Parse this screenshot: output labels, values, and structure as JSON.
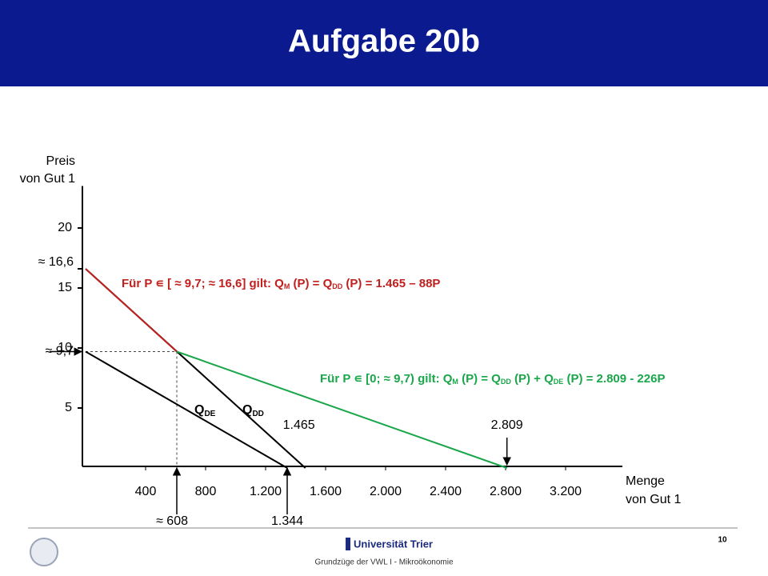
{
  "header": {
    "title": "Aufgabe 20b"
  },
  "chart_data": {
    "type": "line",
    "y_label": [
      "Preis",
      "von Gut 1"
    ],
    "x_label": [
      "Menge",
      "von Gut 1"
    ],
    "xlim": [
      0,
      3600
    ],
    "ylim": [
      0,
      23.5
    ],
    "xticks": [
      400,
      800,
      {
        "value": 1200,
        "label": "1.200"
      },
      {
        "value": 1600,
        "label": "1.600"
      },
      {
        "value": 2000,
        "label": "2.000"
      },
      {
        "value": 2400,
        "label": "2.400"
      },
      {
        "value": 2800,
        "label": "2.800"
      },
      {
        "value": 3200,
        "label": "3.200"
      }
    ],
    "yticks": [
      5,
      10,
      15,
      20
    ],
    "series": [
      {
        "label": [
          "Q",
          "DE"
        ],
        "color": "#000000",
        "x": [
          0,
          1344
        ],
        "values": [
          9.7,
          0
        ]
      },
      {
        "label": [
          "Q",
          "DD"
        ],
        "color": "#000000",
        "x": [
          0,
          1465
        ],
        "values": [
          16.6,
          0
        ]
      },
      {
        "color": "#c0201e",
        "x": [
          0,
          608
        ],
        "values": [
          16.6,
          9.7
        ]
      },
      {
        "color": "#1aa64a",
        "x": [
          608,
          2809
        ],
        "values": [
          9.7,
          0
        ]
      }
    ],
    "y_annotations": [
      {
        "text": "≈ 16,6",
        "value": 16.6,
        "kind": "tick"
      },
      {
        "text": "≈ 9,7",
        "value": 9.7,
        "kind": "arrow"
      }
    ],
    "x_annotations_below": [
      {
        "text": "≈ 608",
        "value": 608
      },
      {
        "text": "1.344",
        "value": 1344
      }
    ],
    "x_annotations_above": [
      {
        "text": "1.465",
        "value": 1465,
        "kind": "none"
      },
      {
        "text": "2.809",
        "value": 2809,
        "kind": "arrow"
      }
    ],
    "equations": [
      {
        "color": "#c0201e",
        "parts": [
          "Für P ∊ [ ≈ 9,7; ≈ 16,6] gilt: Q",
          "M",
          " (P) = Q",
          "DD",
          " (P) = 1.465 – 88P"
        ]
      },
      {
        "color": "#1aa64a",
        "parts": [
          "Für P ∊ [0; ≈ 9,7) gilt: Q",
          "M",
          " (P) = Q",
          "DD",
          " (P) + Q",
          "DE",
          " (P) = 2.809 - 226P"
        ]
      }
    ]
  },
  "footer": {
    "university": "Universität Trier",
    "course": "Grundzüge der VWL I - Mikroökonomie",
    "page": "10"
  }
}
